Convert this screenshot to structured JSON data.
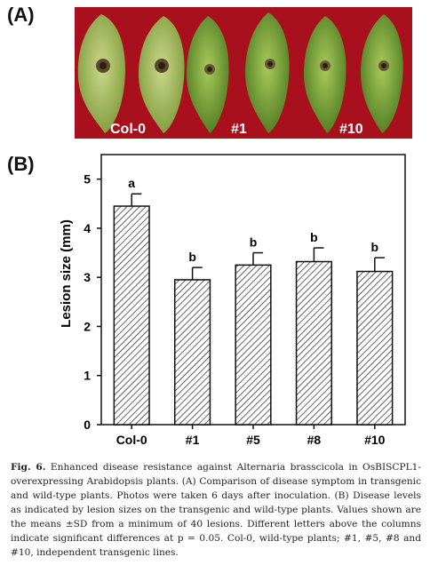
{
  "panel_a_label": "(A)",
  "panel_b_label": "(B)",
  "photo": {
    "background_color": "#a8101e",
    "labels": [
      "Col-0",
      "#1",
      "#10"
    ]
  },
  "chart_data": {
    "type": "bar",
    "categories": [
      "Col-0",
      "#1",
      "#5",
      "#8",
      "#10"
    ],
    "values": [
      4.45,
      2.95,
      3.25,
      3.32,
      3.12
    ],
    "errors": [
      0.25,
      0.25,
      0.25,
      0.28,
      0.28
    ],
    "letters": [
      "a",
      "b",
      "b",
      "b",
      "b"
    ],
    "ylabel": "Lesion size (mm)",
    "xlabel": "",
    "ylim": [
      0,
      5.5
    ],
    "yticks": [
      0,
      1,
      2,
      3,
      4,
      5
    ],
    "bar_fill": "hatched",
    "grid": false
  },
  "caption": {
    "lead": "Fig. 6.",
    "body": " Enhanced disease resistance against Alternaria brasscicola in OsBISCPL1-overexpressing Arabidopsis plants. (A) Comparison of disease symptom in transgenic and wild-type plants. Photos were taken 6 days after inoculation. (B) Disease levels as indicated by lesion sizes on the transgenic and wild-type plants. Values shown are the means ±SD from a minimum of 40 lesions. Different letters above the columns indicate significant differences at p = 0.05. Col-0, wild-type plants; #1, #5, #8 and #10, independent transgenic lines."
  }
}
